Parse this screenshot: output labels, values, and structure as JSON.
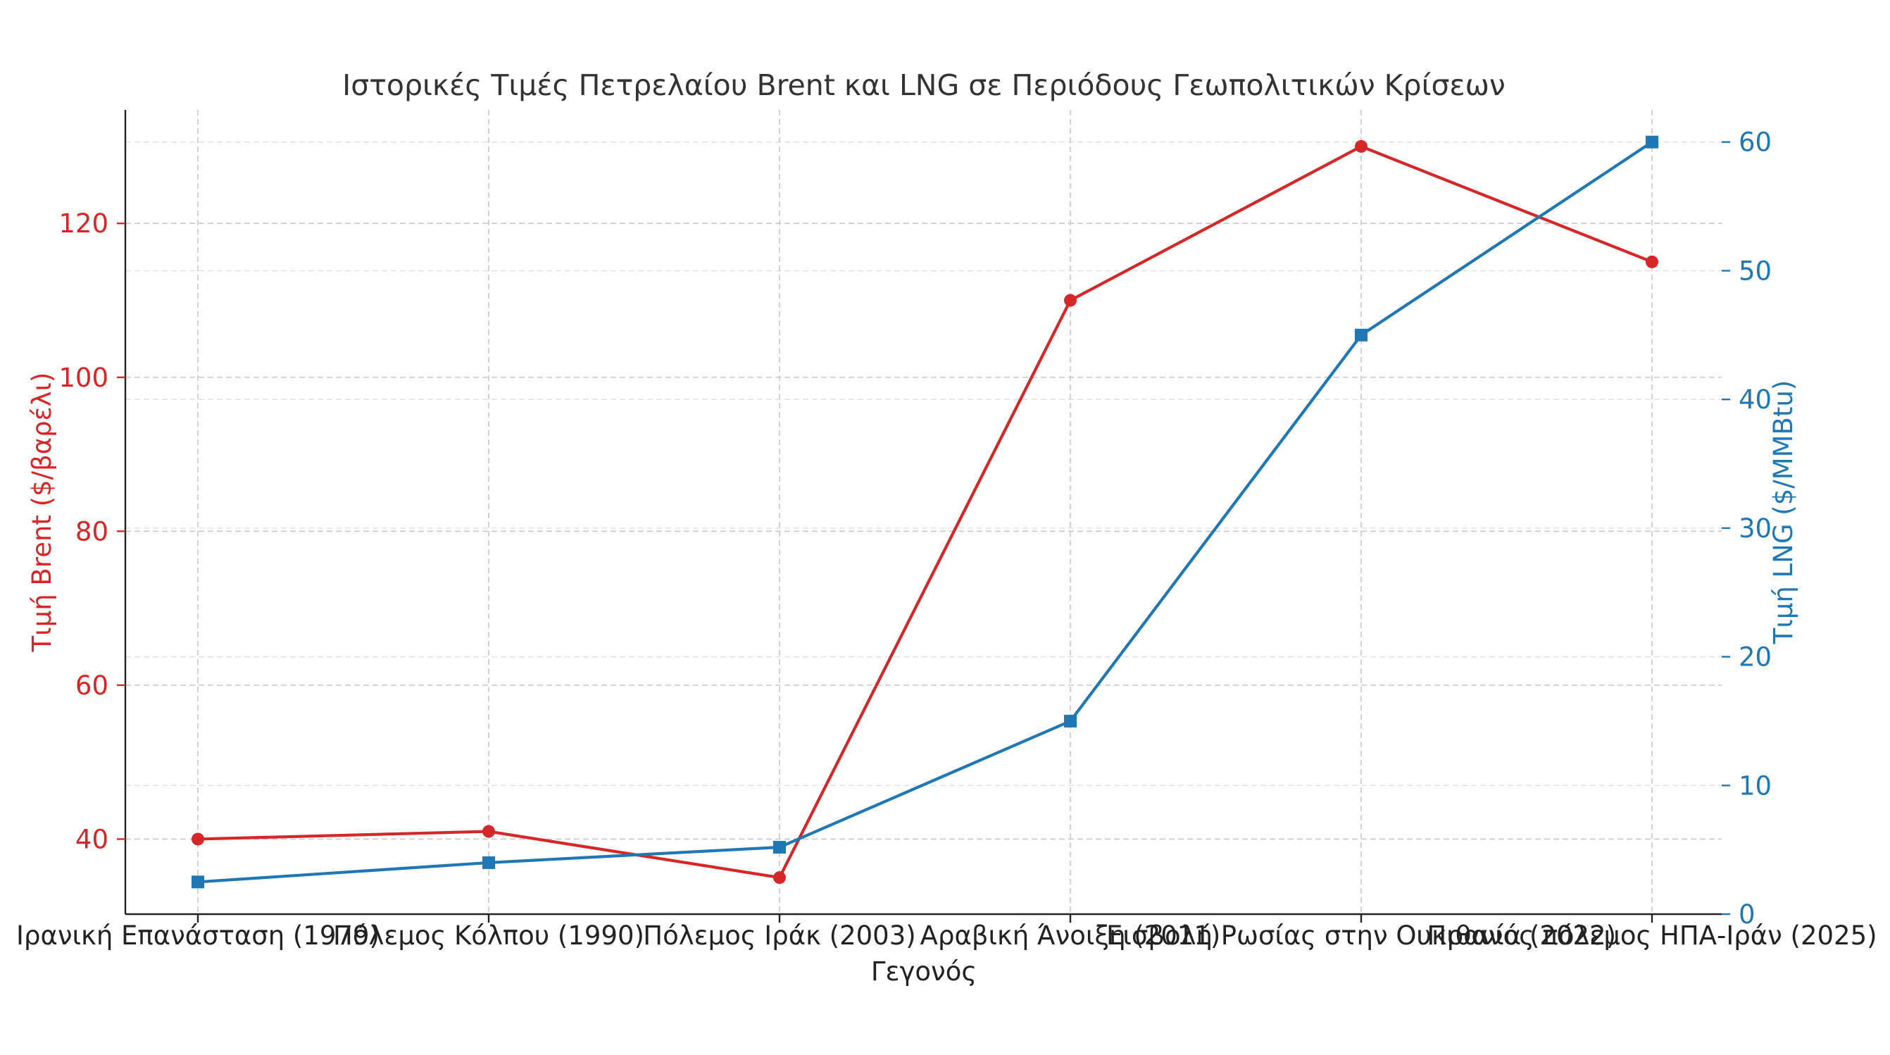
{
  "chart_data": {
    "type": "line",
    "title": "Ιστορικές Τιμές Πετρελαίου Brent και LNG σε Περιόδους Γεωπολιτικών Κρίσεων",
    "xlabel": "Γεγονός",
    "ylabel_left": "Τιμή Brent ($/βαρέλι)",
    "ylabel_right": "Τιμή LNG ($/MMBtu)",
    "categories": [
      "Ιρανική Επανάσταση (1979)",
      "Πόλεμος Κόλπου (1990)",
      "Πόλεμος Ιράκ (2003)",
      "Αραβική Άνοιξη (2011)",
      "Εισβολή Ρωσίας στην Ουκρανία (2022)",
      "Πιθανός πόλεμος ΗΠΑ-Ιράν (2025)"
    ],
    "series": [
      {
        "name": "Brent",
        "axis": "left",
        "color": "#d62728",
        "marker": "circle",
        "values": [
          40,
          41,
          35,
          110,
          130,
          115
        ]
      },
      {
        "name": "LNG",
        "axis": "right",
        "color": "#1f77b4",
        "marker": "square",
        "values": [
          2.5,
          4,
          5.2,
          15,
          45,
          60
        ]
      }
    ],
    "ylim_left": [
      30.25,
      134.75
    ],
    "ylim_right": [
      0,
      62.5
    ],
    "yticks_left": [
      40,
      60,
      80,
      100,
      120
    ],
    "yticks_right": [
      0,
      10,
      20,
      30,
      40,
      50,
      60
    ],
    "grid": true,
    "colors": {
      "left_axis": "#d62728",
      "right_axis": "#1f77b4"
    }
  }
}
